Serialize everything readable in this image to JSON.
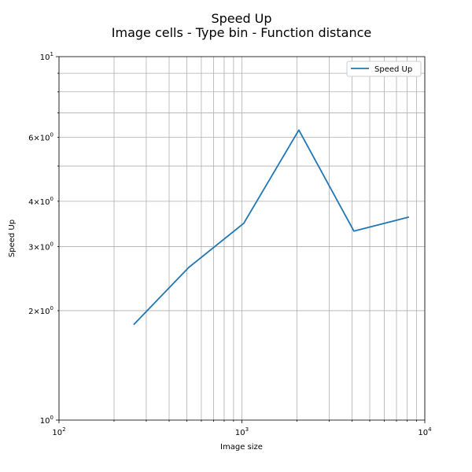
{
  "chart_data": {
    "type": "line",
    "title": "Speed Up",
    "subtitle": "Image cells - Type bin - Function distance",
    "xlabel": "Image size",
    "ylabel": "Speed Up",
    "xscale": "log",
    "yscale": "log",
    "xlim": [
      100,
      10000
    ],
    "ylim": [
      1,
      10
    ],
    "grid": "both (major and minor)",
    "legend_position": "top-right",
    "x_tick_labels": [
      "10^2",
      "10^3",
      "10^4"
    ],
    "y_tick_labels": [
      "10^0",
      "2×10^0",
      "3×10^0",
      "4×10^0",
      "6×10^0",
      "10^1"
    ],
    "series": [
      {
        "name": "Speed Up",
        "color": "#1f77b4",
        "x": [
          256,
          512,
          1024,
          2048,
          4096,
          8192
        ],
        "y": [
          1.83,
          2.63,
          3.48,
          6.28,
          3.31,
          3.62
        ]
      }
    ]
  }
}
